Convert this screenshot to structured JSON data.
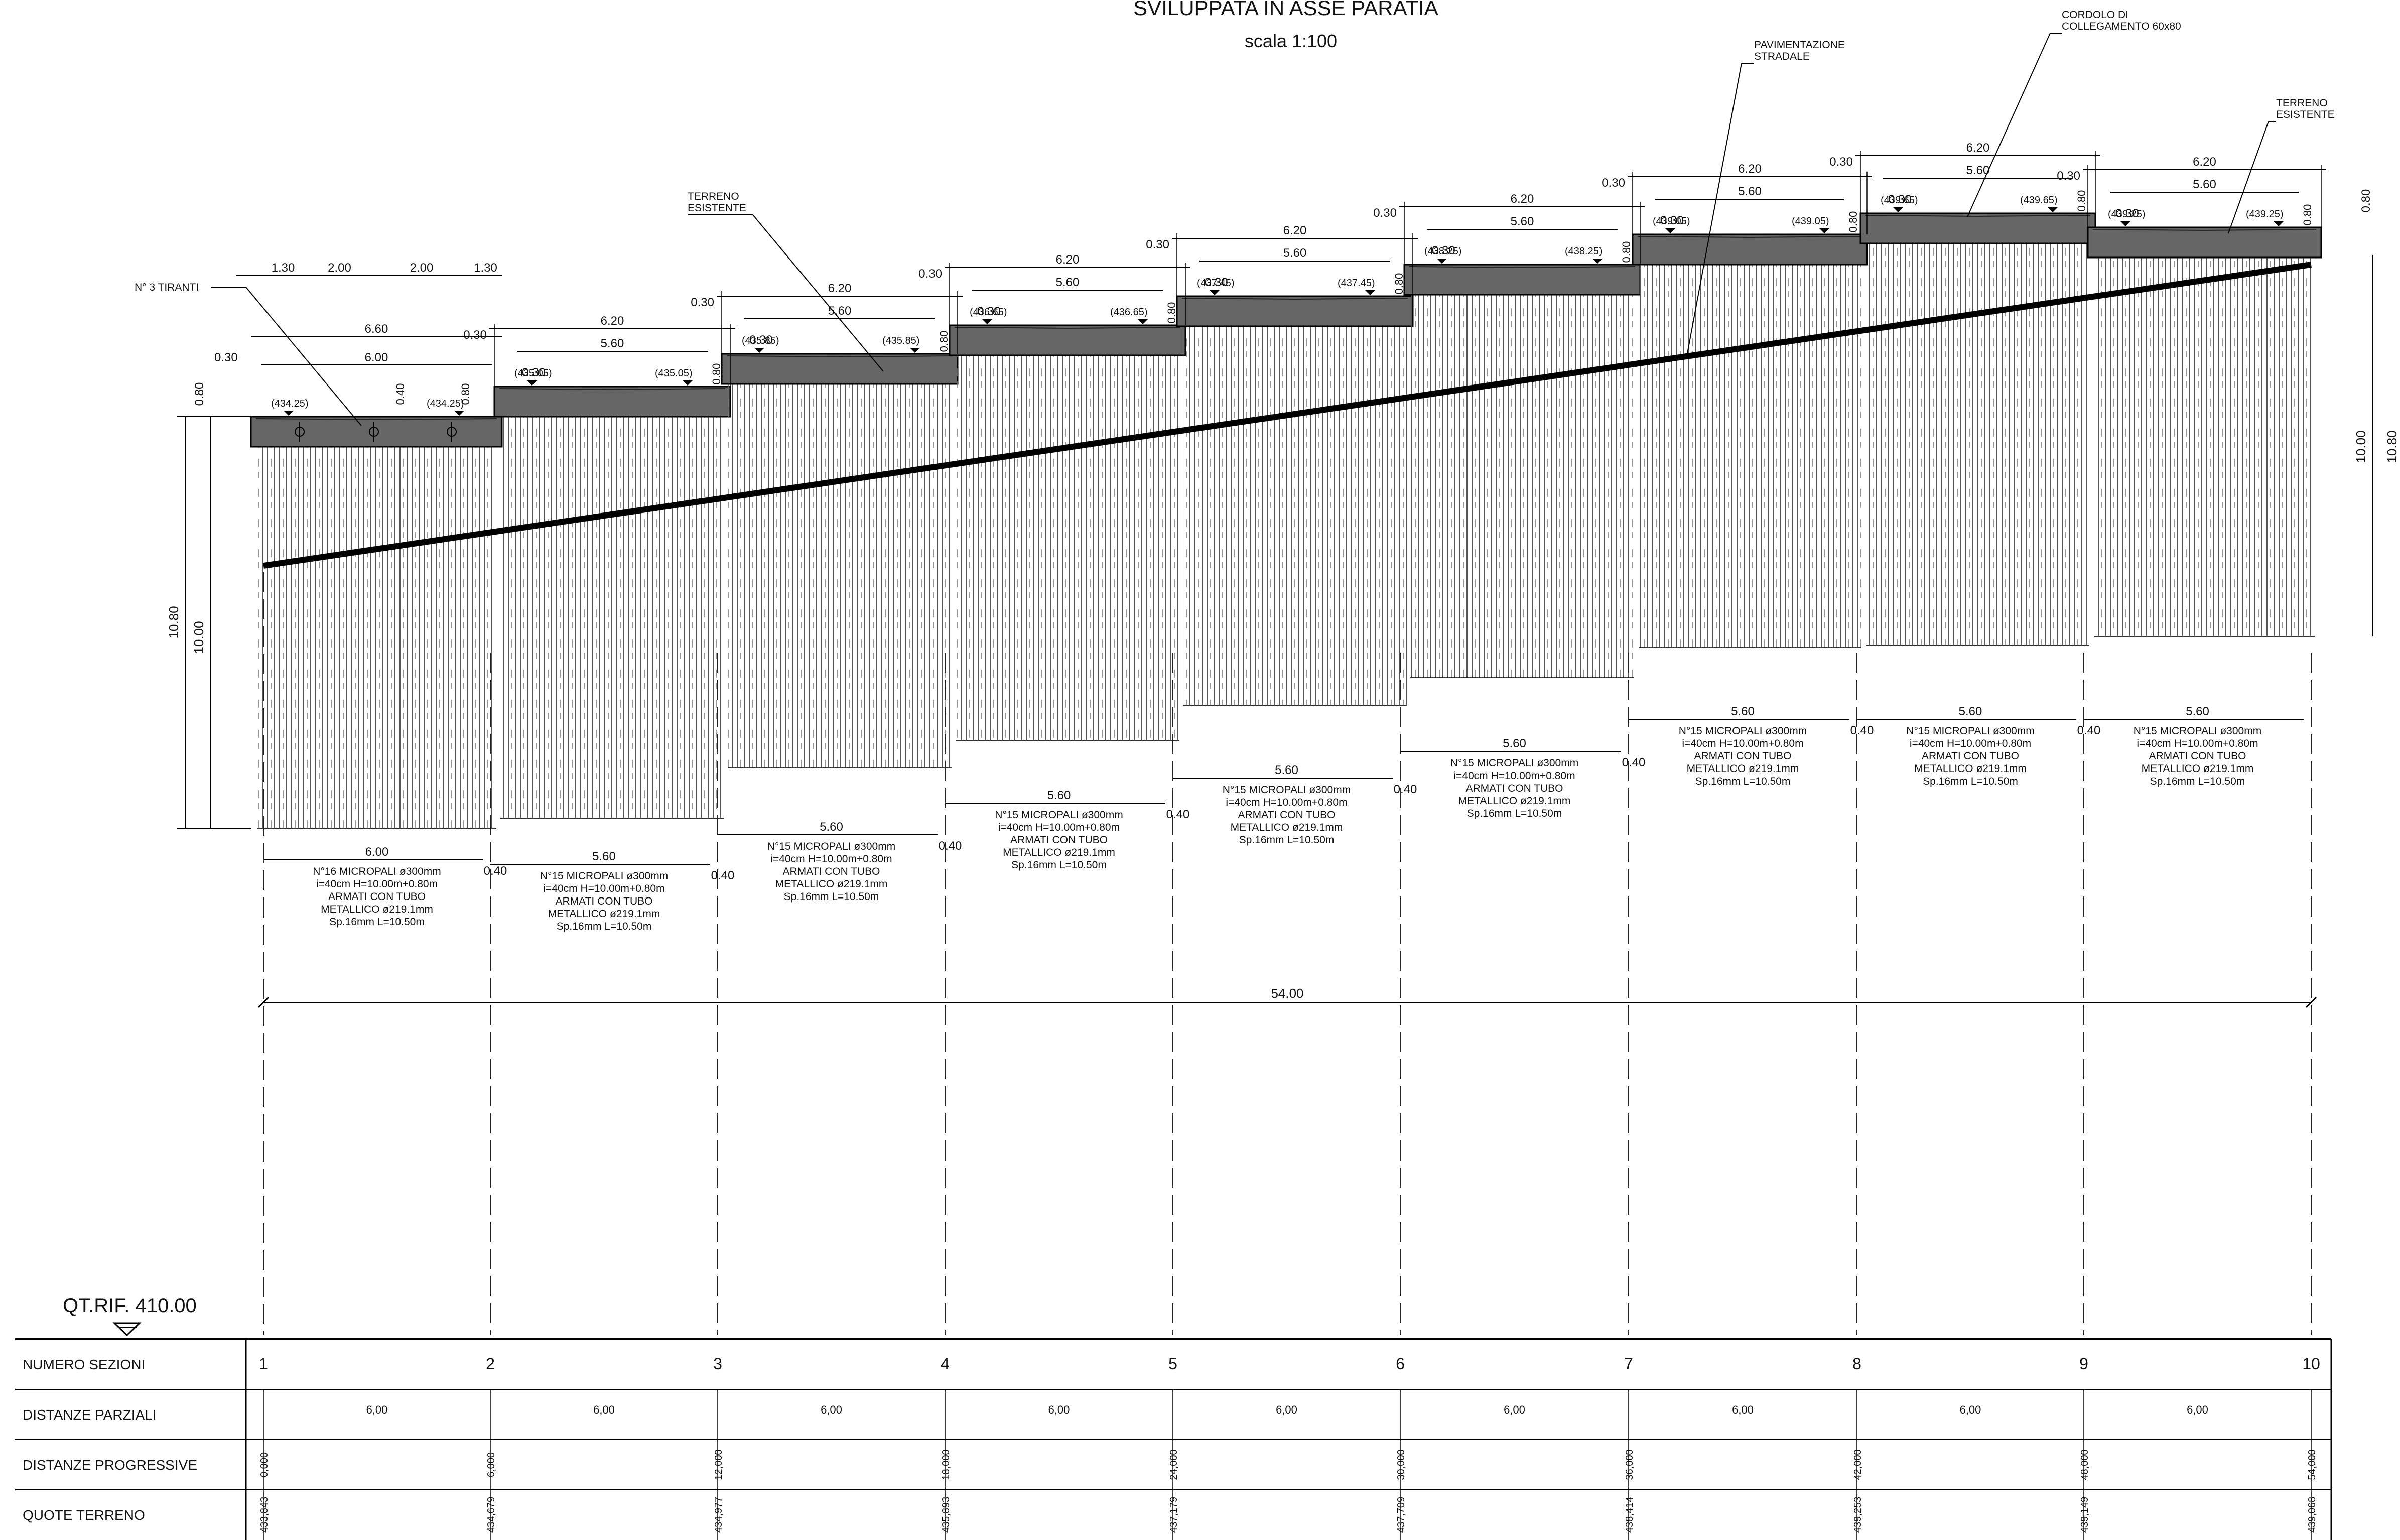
{
  "title": "SVILUPPATA IN ASSE PARATIA",
  "scale": "scala 1:100",
  "qt_rif": "QT.RIF. 410.00",
  "annotations": {
    "tiranti": "N° 3 TIRANTI",
    "terreno_esistente_1": "TERRENO",
    "terreno_esistente_2": "ESISTENTE",
    "pavimentazione_1": "PAVIMENTAZIONE",
    "pavimentazione_2": "STRADALE",
    "cordolo_1": "CORDOLO DI",
    "cordolo_2": "COLLEGAMENTO 60x80",
    "terreno_right_1": "TERRENO",
    "terreno_right_2": "ESISTENTE"
  },
  "segments": [
    {
      "elev": "(434.25)",
      "elev2": "(434.25)",
      "n": "N°16 MICROPALI ø300mm",
      "i": "i=40cm H=10.00m+0.80m",
      "arm": "ARMATI CON TUBO",
      "met": "METALLICO ø219.1mm",
      "sp": "Sp.16mm L=10.50m",
      "len": "6.00"
    },
    {
      "elev": "(435.05)",
      "elev2": "(435.05)",
      "n": "N°15 MICROPALI ø300mm",
      "i": "i=40cm H=10.00m+0.80m",
      "arm": "ARMATI CON TUBO",
      "met": "METALLICO ø219.1mm",
      "sp": "Sp.16mm L=10.50m",
      "len": "5.60"
    },
    {
      "elev": "(435.85)",
      "elev2": "(435.85)",
      "n": "N°15 MICROPALI ø300mm",
      "i": "i=40cm H=10.00m+0.80m",
      "arm": "ARMATI CON TUBO",
      "met": "METALLICO ø219.1mm",
      "sp": "Sp.16mm L=10.50m",
      "len": "5.60"
    },
    {
      "elev": "(436.65)",
      "elev2": "(436.65)",
      "n": "N°15 MICROPALI ø300mm",
      "i": "i=40cm H=10.00m+0.80m",
      "arm": "ARMATI CON TUBO",
      "met": "METALLICO ø219.1mm",
      "sp": "Sp.16mm L=10.50m",
      "len": "5.60"
    },
    {
      "elev": "(437.45)",
      "elev2": "(437.45)",
      "n": "N°15 MICROPALI ø300mm",
      "i": "i=40cm H=10.00m+0.80m",
      "arm": "ARMATI CON TUBO",
      "met": "METALLICO ø219.1mm",
      "sp": "Sp.16mm L=10.50m",
      "len": "5.60"
    },
    {
      "elev": "(438.25)",
      "elev2": "(438.25)",
      "n": "N°15 MICROPALI ø300mm",
      "i": "i=40cm H=10.00m+0.80m",
      "arm": "ARMATI CON TUBO",
      "met": "METALLICO ø219.1mm",
      "sp": "Sp.16mm L=10.50m",
      "len": "5.60"
    },
    {
      "elev": "(439.05)",
      "elev2": "(439.05)",
      "n": "N°15 MICROPALI ø300mm",
      "i": "i=40cm H=10.00m+0.80m",
      "arm": "ARMATI CON TUBO",
      "met": "METALLICO ø219.1mm",
      "sp": "Sp.16mm L=10.50m",
      "len": "5.60"
    },
    {
      "elev": "(439.65)",
      "elev2": "(439.65)",
      "n": "N°15 MICROPALI ø300mm",
      "i": "i=40cm H=10.00m+0.80m",
      "arm": "ARMATI CON TUBO",
      "met": "METALLICO ø219.1mm",
      "sp": "Sp.16mm L=10.50m",
      "len": "5.60"
    },
    {
      "elev": "(439.25)",
      "elev2": "(439.25)",
      "n": "N°15 MICROPALI ø300mm",
      "i": "i=40cm H=10.00m+0.80m",
      "arm": "ARMATI CON TUBO",
      "met": "METALLICO ø219.1mm",
      "sp": "Sp.16mm L=10.50m",
      "len": "5.60"
    }
  ],
  "dims": {
    "seg_outer": "6.20",
    "seg_inner": "5.60",
    "edge": "0.30",
    "gap": "0.40",
    "height": "0.80",
    "first_parts": [
      "1.30",
      "2.00",
      "2.00",
      "1.30"
    ],
    "first_outer": "6.60",
    "first_inner": "6.00",
    "total": "54.00",
    "h_total": "10.80",
    "h_piles": "10.00",
    "h_right": "10.00"
  },
  "table": {
    "rows": [
      "NUMERO SEZIONI",
      "DISTANZE PARZIALI",
      "DISTANZE PROGRESSIVE",
      "QUOTE TERRENO"
    ],
    "sections": [
      "1",
      "2",
      "3",
      "4",
      "5",
      "6",
      "7",
      "8",
      "9",
      "10"
    ],
    "partial": [
      "6,00",
      "6,00",
      "6,00",
      "6,00",
      "6,00",
      "6,00",
      "6,00",
      "6,00",
      "6,00"
    ],
    "progressive": [
      "0,000",
      "6,000",
      "12,000",
      "18,000",
      "24,000",
      "30,000",
      "36,000",
      "42,000",
      "48,000",
      "54,000"
    ],
    "quote": [
      "433,843",
      "434,679",
      "434,977",
      "435,893",
      "437,179",
      "437,709",
      "438,414",
      "439,253",
      "439,149",
      "439,068"
    ]
  }
}
